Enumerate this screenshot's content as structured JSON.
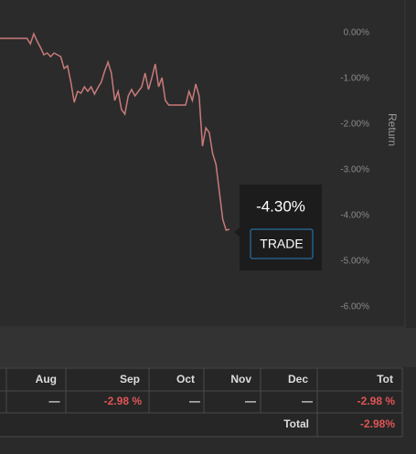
{
  "chart_data": {
    "type": "line",
    "y_label": "Return",
    "values": [
      -0.12,
      -0.12,
      -0.12,
      -0.12,
      -0.12,
      -0.12,
      -0.12,
      -0.12,
      -0.12,
      -0.24,
      -0.02,
      -0.18,
      -0.32,
      -0.48,
      -0.44,
      -0.52,
      -0.44,
      -0.48,
      -0.52,
      -0.78,
      -0.72,
      -1.08,
      -1.52,
      -1.28,
      -1.32,
      -1.18,
      -1.28,
      -1.18,
      -1.34,
      -1.2,
      -1.08,
      -0.84,
      -0.64,
      -0.88,
      -1.48,
      -1.28,
      -1.68,
      -1.78,
      -1.38,
      -1.24,
      -1.38,
      -1.28,
      -1.18,
      -0.88,
      -1.24,
      -0.98,
      -0.68,
      -1.18,
      -0.98,
      -1.48,
      -1.58,
      -1.58,
      -1.58,
      -1.58,
      -1.58,
      -1.58,
      -1.28,
      -1.48,
      -1.12,
      -1.38,
      -2.48,
      -2.08,
      -2.18,
      -2.64,
      -2.88,
      -3.48,
      -4.08,
      -4.32,
      -4.3
    ],
    "color": "#c97a7a",
    "ylim": [
      -6.42,
      0.72
    ],
    "yticks": [
      {
        "value": 0,
        "label": "0.00%"
      },
      {
        "value": -1,
        "label": "-1.00%"
      },
      {
        "value": -2,
        "label": "-2.00%"
      },
      {
        "value": -3,
        "label": "-3.00%"
      },
      {
        "value": -4,
        "label": "-4.00%"
      },
      {
        "value": -5,
        "label": "-5.00%"
      },
      {
        "value": -6,
        "label": "-6.00%"
      }
    ]
  },
  "tooltip": {
    "text": "-4.30%",
    "button": "TRADE"
  },
  "table": {
    "headers": [
      "Aug",
      "Sep",
      "Oct",
      "Nov",
      "Dec",
      "Tot"
    ],
    "row": [
      "—",
      "-2.98 %",
      "—",
      "—",
      "—",
      "-2.98 %"
    ],
    "total_label": "Total",
    "total_value": "-2.98%"
  }
}
